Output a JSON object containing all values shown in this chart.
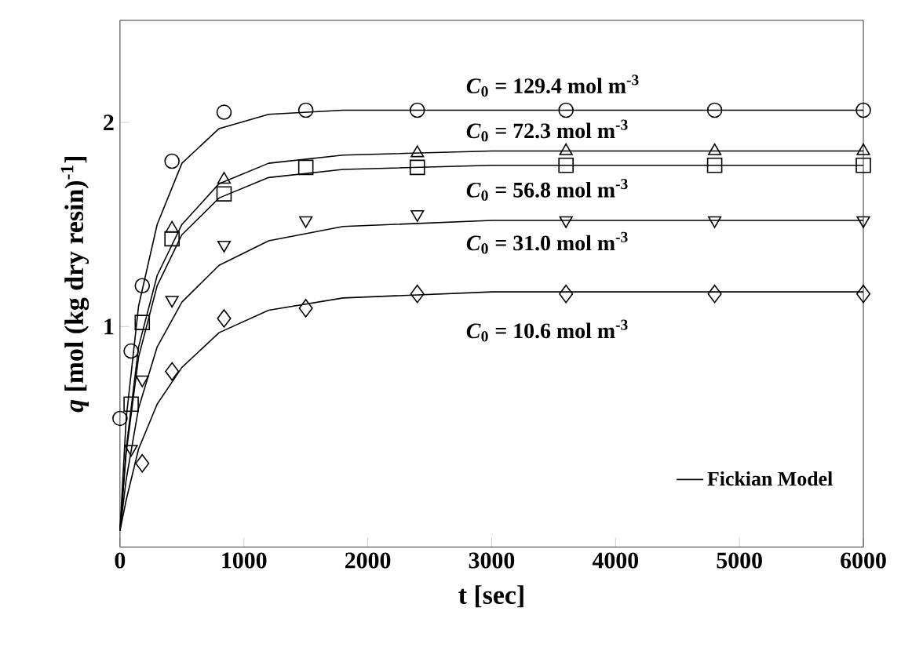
{
  "chart_data": {
    "type": "scatter",
    "xlabel": "t [sec]",
    "ylabel": "*q* [mol (kg dry resin)$^{-1}$]",
    "xlim": [
      0,
      6000
    ],
    "ylim": [
      -0.08,
      2.5
    ],
    "xticks": [
      0,
      1000,
      2000,
      3000,
      4000,
      5000,
      6000
    ],
    "yticks": [
      1,
      2
    ],
    "grid": false,
    "legend": "bottom right",
    "series": [
      {
        "marker": "circle",
        "color": "#000000",
        "x": [
          0,
          90,
          180,
          420,
          840,
          1500,
          2400,
          3600,
          4800,
          6000
        ],
        "values": [
          0.55,
          0.88,
          1.2,
          1.81,
          2.05,
          2.06,
          2.06,
          2.06,
          2.06,
          2.06
        ]
      },
      {
        "marker": "triangle",
        "color": "#000000",
        "x": [
          420,
          840,
          2400,
          3600,
          4800,
          6000
        ],
        "values": [
          1.48,
          1.72,
          1.85,
          1.86,
          1.86,
          1.86
        ]
      },
      {
        "marker": "square",
        "color": "#000000",
        "x": [
          90,
          180,
          420,
          840,
          1500,
          2400,
          3600,
          4800,
          6000
        ],
        "values": [
          0.62,
          1.02,
          1.43,
          1.65,
          1.78,
          1.78,
          1.79,
          1.79,
          1.79
        ]
      },
      {
        "marker": "triangle-down",
        "color": "#000000",
        "x": [
          90,
          180,
          420,
          840,
          1500,
          2400,
          3600,
          4800,
          6000
        ],
        "values": [
          0.4,
          0.74,
          1.13,
          1.4,
          1.52,
          1.55,
          1.52,
          1.52,
          1.52
        ]
      },
      {
        "marker": "diamond",
        "color": "#000000",
        "x": [
          180,
          420,
          840,
          1500,
          2400,
          3600,
          4800,
          6000
        ],
        "values": [
          0.33,
          0.78,
          1.04,
          1.09,
          1.16,
          1.16,
          1.16,
          1.16
        ]
      },
      {
        "type": "line",
        "name": "Fickian Model",
        "marker": "none",
        "color": "#000000",
        "x": [
          0,
          50,
          150,
          300,
          500,
          800,
          1200,
          1800,
          6000
        ],
        "values": [
          0,
          0.55,
          1.1,
          1.5,
          1.8,
          1.97,
          2.04,
          2.06,
          2.06
        ]
      },
      {
        "type": "line",
        "marker": "none",
        "color": "#000000",
        "x": [
          0,
          50,
          150,
          300,
          500,
          800,
          1200,
          1800,
          3000,
          6000
        ],
        "values": [
          0,
          0.4,
          0.9,
          1.25,
          1.5,
          1.7,
          1.8,
          1.84,
          1.86,
          1.86
        ]
      },
      {
        "type": "line",
        "marker": "none",
        "color": "#000000",
        "x": [
          0,
          50,
          150,
          300,
          500,
          800,
          1200,
          1800,
          3000,
          6000
        ],
        "values": [
          0,
          0.38,
          0.85,
          1.2,
          1.45,
          1.63,
          1.73,
          1.77,
          1.79,
          1.79
        ]
      },
      {
        "type": "line",
        "marker": "none",
        "color": "#000000",
        "x": [
          0,
          50,
          150,
          300,
          500,
          800,
          1200,
          1800,
          3000,
          6000
        ],
        "values": [
          0,
          0.25,
          0.6,
          0.9,
          1.12,
          1.3,
          1.42,
          1.49,
          1.52,
          1.52
        ]
      },
      {
        "type": "line",
        "marker": "none",
        "color": "#000000",
        "x": [
          0,
          50,
          150,
          300,
          500,
          800,
          1200,
          1800,
          3000,
          6000
        ],
        "values": [
          0,
          0.15,
          0.4,
          0.62,
          0.8,
          0.97,
          1.08,
          1.14,
          1.17,
          1.17
        ]
      }
    ],
    "annotations": [
      "*C*$_{0}$ = 129.4 mol m$^{-3}$",
      "*C*$_{0}$ =   72.3 mol m$^{-3}$",
      "*C*$_{0}$ =   56.8 mol m$^{-3}$",
      "*C*$_{0}$ =   31.0 mol m$^{-3}$",
      "*C*$_{0}$ =   10.6 mol m$^{-3}$"
    ]
  }
}
